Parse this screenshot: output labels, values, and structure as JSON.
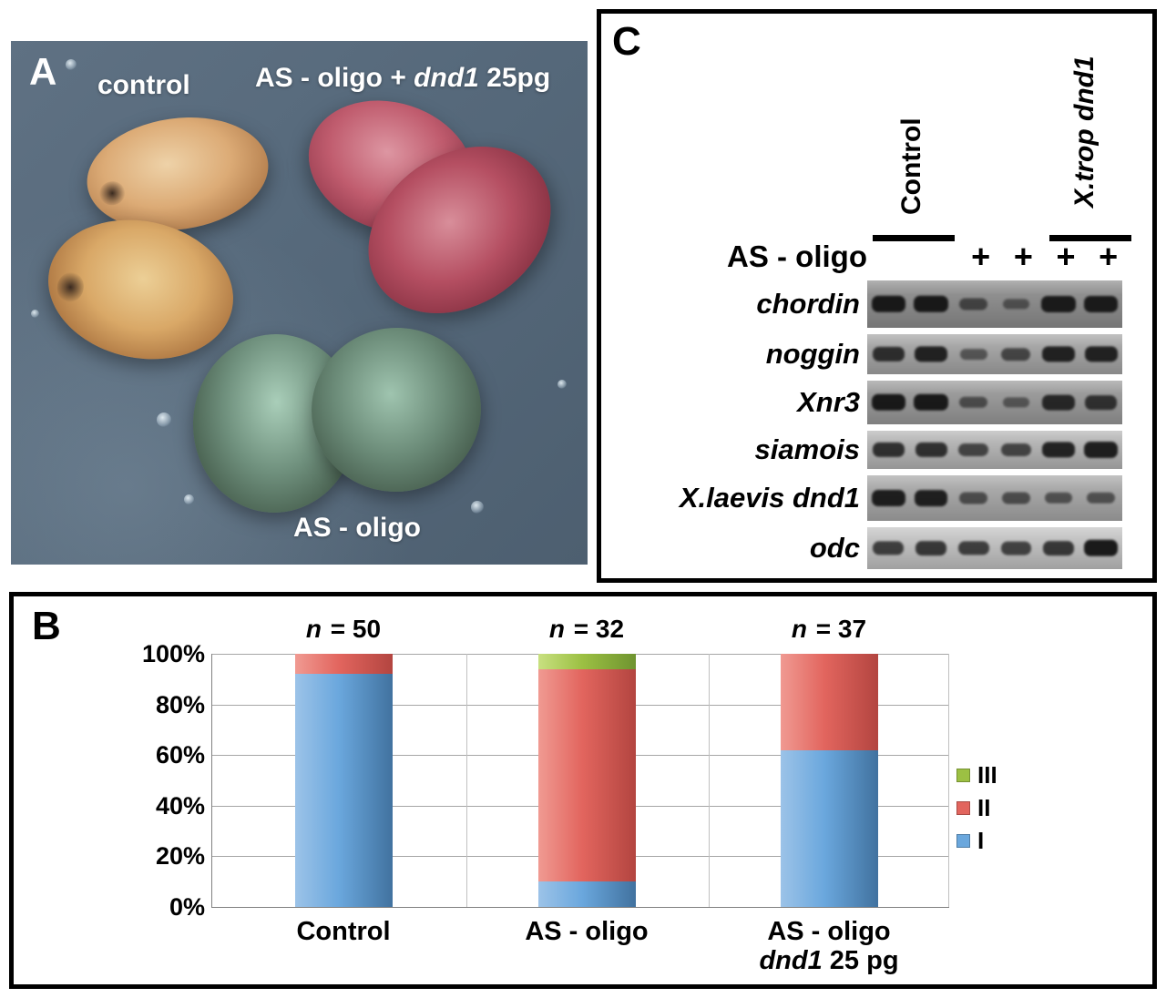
{
  "panel_a": {
    "label": "A",
    "captions": {
      "control": "control",
      "as_oligo_dnd1_part1": "AS - oligo + ",
      "as_oligo_dnd1_italic": "dnd1",
      "as_oligo_dnd1_part2": " 25pg",
      "as_oligo": "AS - oligo"
    }
  },
  "panel_c": {
    "label": "C",
    "groups": [
      {
        "name": "Control",
        "italic": false
      },
      {
        "name": "X.trop dnd1",
        "italic": true
      }
    ],
    "as_oligo_label": "AS - oligo",
    "lane_plus": [
      "",
      "",
      "+",
      "+",
      "+",
      "+"
    ],
    "rows": [
      {
        "gene": "chordin",
        "bg": "#8f8f8f",
        "h": 52,
        "bands": [
          0.95,
          0.95,
          0.45,
          0.3,
          0.92,
          0.92
        ]
      },
      {
        "gene": "noggin",
        "bg": "#a6a6a6",
        "h": 44,
        "bands": [
          0.75,
          0.85,
          0.35,
          0.5,
          0.85,
          0.85
        ]
      },
      {
        "gene": "Xnr3",
        "bg": "#9b9b9b",
        "h": 48,
        "bands": [
          0.95,
          0.95,
          0.4,
          0.3,
          0.8,
          0.7
        ]
      },
      {
        "gene": "siamois",
        "bg": "#b6b6b6",
        "h": 42,
        "bands": [
          0.75,
          0.75,
          0.55,
          0.55,
          0.85,
          0.9
        ]
      },
      {
        "gene": "X.laevis dnd1",
        "bg": "#a9a9a9",
        "h": 50,
        "bands": [
          0.9,
          0.88,
          0.45,
          0.45,
          0.4,
          0.4
        ]
      },
      {
        "gene": "odc",
        "bg": "#c3c3c3",
        "h": 46,
        "bands": [
          0.65,
          0.7,
          0.65,
          0.62,
          0.7,
          0.95
        ]
      }
    ]
  },
  "panel_b": {
    "label": "B"
  },
  "chart_data": {
    "type": "bar",
    "stacked": true,
    "title": "",
    "categories": [
      {
        "line1": "Control",
        "line2_italic": "",
        "line2_rest": ""
      },
      {
        "line1": "AS - oligo",
        "line2_italic": "",
        "line2_rest": ""
      },
      {
        "line1": "AS - oligo",
        "line2_italic": "dnd1",
        "line2_rest": " 25 pg"
      }
    ],
    "n_labels": [
      {
        "var": "n",
        "rest": " = 50"
      },
      {
        "var": "n",
        "rest": " = 32"
      },
      {
        "var": "n",
        "rest": " = 37"
      }
    ],
    "series": [
      {
        "name": "I",
        "values": [
          92,
          10,
          62
        ],
        "color_light": "#9cc3e8",
        "color_mid": "#6aa7dd",
        "color_dark": "#41729f"
      },
      {
        "name": "II",
        "values": [
          8,
          84,
          38
        ],
        "color_light": "#f09a92",
        "color_mid": "#e2655e",
        "color_dark": "#b34540"
      },
      {
        "name": "III",
        "values": [
          0,
          6,
          0
        ],
        "color_light": "#c8e080",
        "color_mid": "#9cc043",
        "color_dark": "#6f9430"
      }
    ],
    "y_ticks": [
      "0%",
      "20%",
      "40%",
      "60%",
      "80%",
      "100%"
    ],
    "ylim": [
      0,
      100
    ],
    "grid": true,
    "legend_position": "right",
    "legend_order": [
      "III",
      "II",
      "I"
    ]
  }
}
